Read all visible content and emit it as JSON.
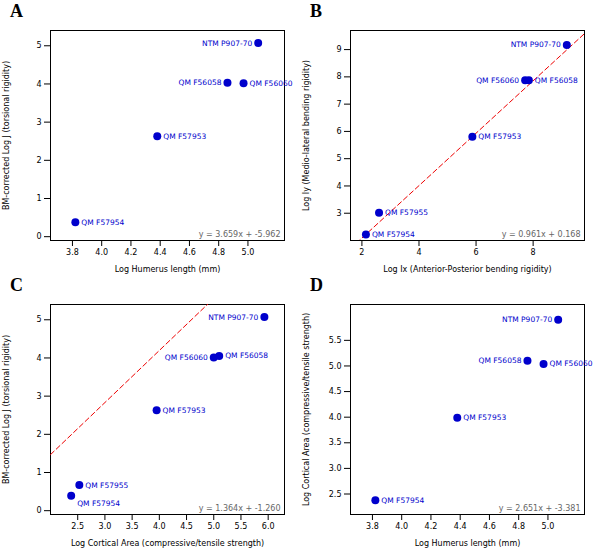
{
  "chart_data": [
    {
      "type": "scatter",
      "title": "A",
      "xlabel": "Log Humerus length (mm)",
      "ylabel": "BM-corrected Log J (torsional rigidity)",
      "annotations": [
        "y = 3.659x + -5.962"
      ],
      "x": [
        3.82,
        4.38,
        4.86,
        4.97,
        5.07
      ],
      "values": [
        0.38,
        2.63,
        4.03,
        4.02,
        5.07
      ],
      "point_labels": [
        "QM F57954",
        "QM F57953",
        "QM F56058",
        "QM F56060",
        "NTM P907-70"
      ],
      "color": "#0000CC",
      "fit": {
        "slope": 3.659,
        "intercept": -5.962,
        "color": "#EE0000",
        "line_style": "dashed"
      },
      "xlim": [
        3.65,
        5.25
      ],
      "ylim": [
        -0.1,
        5.4
      ],
      "xticks": [
        3.8,
        {
          "value": 4,
          "label": "4.0"
        },
        4.2,
        4.4,
        4.6,
        4.8,
        {
          "value": 5,
          "label": "5.0"
        }
      ],
      "yticks": [
        0,
        1,
        2,
        3,
        4,
        5
      ],
      "grid": false
    },
    {
      "type": "scatter",
      "title": "B",
      "xlabel": "Log Ix (Anterior-Posterior bending rigidity)",
      "ylabel": "Log Iy (Medio-lateral bending rigidity)",
      "annotations": [
        "y = 0.961x + 0.168"
      ],
      "x": [
        2.14,
        2.6,
        5.87,
        7.72,
        7.85,
        9.18
      ],
      "values": [
        2.22,
        3.02,
        5.8,
        7.88,
        7.88,
        9.17
      ],
      "point_labels": [
        "QM F57954",
        "QM F57955",
        "QM F57953",
        "QM F56060",
        "QM F56058",
        "NTM P907-70"
      ],
      "color": "#0000CC",
      "fit": {
        "slope": 0.961,
        "intercept": 0.168,
        "color": "#EE0000",
        "line_style": "dashed"
      },
      "xlim": [
        1.6,
        9.8
      ],
      "ylim": [
        2.0,
        9.7
      ],
      "xticks": [
        2,
        4,
        6,
        8
      ],
      "yticks": [
        3,
        4,
        5,
        6,
        7,
        8,
        9
      ],
      "grid": false
    },
    {
      "type": "scatter",
      "title": "C",
      "xlabel": "Log Cortical Area (compressive/tensile strength)",
      "ylabel": "BM-corrected Log J (torsional rigidity)",
      "annotations": [
        "y = 1.364x + -1.260"
      ],
      "x": [
        2.38,
        2.53,
        3.95,
        5.0,
        5.1,
        5.93
      ],
      "values": [
        0.39,
        0.67,
        2.63,
        4.01,
        4.05,
        5.07
      ],
      "point_labels": [
        "QM F57954",
        "QM F57955",
        "QM F57953",
        "QM F56060",
        "QM F56058",
        "NTM P907-70"
      ],
      "color": "#0000CC",
      "fit": {
        "slope": 1.364,
        "intercept": -1.26,
        "color": "#EE0000",
        "line_style": "dashed"
      },
      "xlim": [
        2.0,
        6.3
      ],
      "ylim": [
        -0.1,
        5.4
      ],
      "xticks": [
        2.5,
        {
          "value": 3,
          "label": "3.0"
        },
        3.5,
        {
          "value": 4,
          "label": "4.0"
        },
        4.5,
        {
          "value": 5,
          "label": "5.0"
        },
        5.5,
        {
          "value": 6,
          "label": "6.0"
        }
      ],
      "yticks": [
        0,
        1,
        2,
        3,
        4,
        5
      ],
      "grid": false
    },
    {
      "type": "scatter",
      "title": "D",
      "xlabel": "Log Humerus length (mm)",
      "ylabel": "Log Cortical Area (compressive/tensile strength)",
      "annotations": [
        "y = 2.651x + -3.381"
      ],
      "x": [
        3.82,
        4.38,
        4.86,
        4.97,
        5.07
      ],
      "values": [
        2.38,
        3.99,
        5.1,
        5.04,
        5.9
      ],
      "point_labels": [
        "QM F57954",
        "QM F57953",
        "QM F56058",
        "QM F56060",
        "NTM P907-70"
      ],
      "color": "#0000CC",
      "fit": {
        "slope": 2.651,
        "intercept": -3.381,
        "color": "#EE0000",
        "line_style": "dashed"
      },
      "xlim": [
        3.65,
        5.25
      ],
      "ylim": [
        2.1,
        6.2
      ],
      "xticks": [
        3.8,
        {
          "value": 4,
          "label": "4.0"
        },
        4.2,
        4.4,
        4.6,
        4.8,
        {
          "value": 5,
          "label": "5.0"
        }
      ],
      "yticks": [
        2.5,
        {
          "value": 3,
          "label": "3.0"
        },
        3.5,
        {
          "value": 4,
          "label": "4.0"
        },
        4.5,
        {
          "value": 5,
          "label": "5.0"
        },
        5.5
      ],
      "grid": false
    }
  ]
}
